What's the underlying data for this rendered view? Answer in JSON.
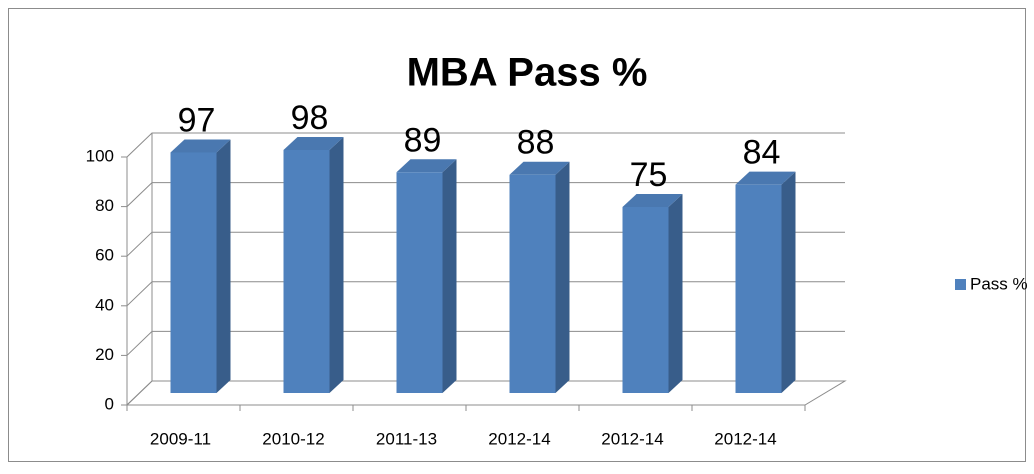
{
  "chart_data": {
    "type": "bar3d",
    "title": "MBA Pass %",
    "categories": [
      "2009-11",
      "2010-12",
      "2011-13",
      "2012-14",
      "2012-14",
      "2012-14"
    ],
    "series": [
      {
        "name": "Pass %",
        "color": "#4f81bd",
        "values": [
          97,
          98,
          89,
          88,
          75,
          84
        ]
      }
    ],
    "ylim": [
      0,
      100
    ],
    "yticks": [
      0,
      20,
      40,
      60,
      80,
      100
    ],
    "grid": true,
    "legend": "right"
  }
}
